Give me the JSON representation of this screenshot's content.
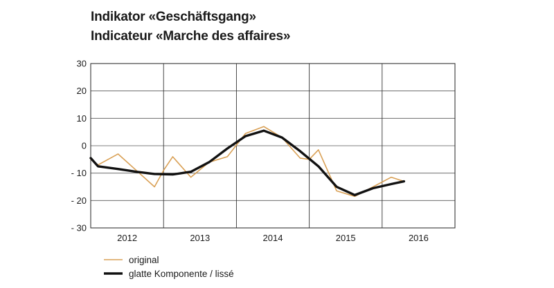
{
  "chart_data": {
    "type": "line",
    "title": "Indikator «Geschäftsgang»",
    "subtitle": "Indicateur «Marche des affaires»",
    "xlabel": "",
    "ylabel": "",
    "ylim": [
      -30,
      30
    ],
    "yticks": [
      "30",
      "20",
      "10",
      "0",
      "- 10",
      "- 20",
      "- 30"
    ],
    "year_labels": [
      "2012",
      "2013",
      "2014",
      "2015",
      "2016"
    ],
    "grid": true,
    "legend_position": "bottom-left",
    "series": [
      {
        "name": "original",
        "color": "#d9a055",
        "x": [
          2011.5,
          2011.6,
          2011.875,
          2012.125,
          2012.375,
          2012.5,
          2012.625,
          2012.875,
          2013.125,
          2013.375,
          2013.625,
          2013.875,
          2014.125,
          2014.375,
          2014.5,
          2014.625,
          2014.875,
          2015.125,
          2015.375,
          2015.625,
          2015.8
        ],
        "values": [
          -5,
          -7,
          -3,
          -9,
          -15,
          -9,
          -4,
          -11.5,
          -6,
          -4,
          4.5,
          7,
          3,
          -4.5,
          -5,
          -1.5,
          -16.5,
          -18.5,
          -15,
          -11.5,
          -13
        ]
      },
      {
        "name": "glatte Komponente / lissé",
        "color": "#111111",
        "x": [
          2011.5,
          2011.6,
          2011.875,
          2012.125,
          2012.375,
          2012.625,
          2012.875,
          2013.125,
          2013.375,
          2013.625,
          2013.875,
          2014.125,
          2014.375,
          2014.625,
          2014.875,
          2015.125,
          2015.375,
          2015.625,
          2015.8
        ],
        "values": [
          -4.5,
          -7.5,
          -8.5,
          -9.5,
          -10.3,
          -10.5,
          -9.5,
          -6,
          -1,
          3.5,
          5.5,
          3,
          -2,
          -7.5,
          -15,
          -18,
          -15.5,
          -14,
          -13
        ]
      }
    ]
  }
}
